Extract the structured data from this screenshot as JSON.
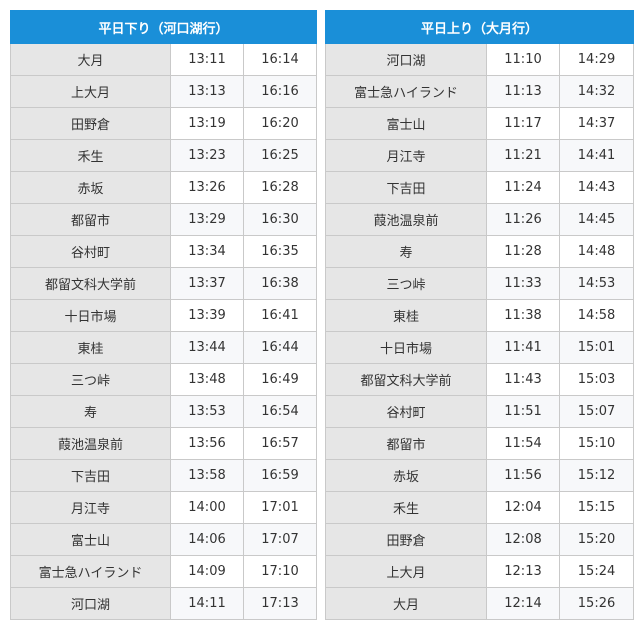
{
  "tables": [
    {
      "title": "平日下り（河口湖行）",
      "rows": [
        {
          "station": "大月",
          "times": [
            "13:11",
            "16:14"
          ]
        },
        {
          "station": "上大月",
          "times": [
            "13:13",
            "16:16"
          ]
        },
        {
          "station": "田野倉",
          "times": [
            "13:19",
            "16:20"
          ]
        },
        {
          "station": "禾生",
          "times": [
            "13:23",
            "16:25"
          ]
        },
        {
          "station": "赤坂",
          "times": [
            "13:26",
            "16:28"
          ]
        },
        {
          "station": "都留市",
          "times": [
            "13:29",
            "16:30"
          ]
        },
        {
          "station": "谷村町",
          "times": [
            "13:34",
            "16:35"
          ]
        },
        {
          "station": "都留文科大学前",
          "times": [
            "13:37",
            "16:38"
          ]
        },
        {
          "station": "十日市場",
          "times": [
            "13:39",
            "16:41"
          ]
        },
        {
          "station": "東桂",
          "times": [
            "13:44",
            "16:44"
          ]
        },
        {
          "station": "三つ峠",
          "times": [
            "13:48",
            "16:49"
          ]
        },
        {
          "station": "寿",
          "times": [
            "13:53",
            "16:54"
          ]
        },
        {
          "station": "葭池温泉前",
          "times": [
            "13:56",
            "16:57"
          ]
        },
        {
          "station": "下吉田",
          "times": [
            "13:58",
            "16:59"
          ]
        },
        {
          "station": "月江寺",
          "times": [
            "14:00",
            "17:01"
          ]
        },
        {
          "station": "富士山",
          "times": [
            "14:06",
            "17:07"
          ]
        },
        {
          "station": "富士急ハイランド",
          "times": [
            "14:09",
            "17:10"
          ]
        },
        {
          "station": "河口湖",
          "times": [
            "14:11",
            "17:13"
          ]
        }
      ]
    },
    {
      "title": "平日上り（大月行）",
      "rows": [
        {
          "station": "河口湖",
          "times": [
            "11:10",
            "14:29"
          ]
        },
        {
          "station": "富士急ハイランド",
          "times": [
            "11:13",
            "14:32"
          ]
        },
        {
          "station": "富士山",
          "times": [
            "11:17",
            "14:37"
          ]
        },
        {
          "station": "月江寺",
          "times": [
            "11:21",
            "14:41"
          ]
        },
        {
          "station": "下吉田",
          "times": [
            "11:24",
            "14:43"
          ]
        },
        {
          "station": "葭池温泉前",
          "times": [
            "11:26",
            "14:45"
          ]
        },
        {
          "station": "寿",
          "times": [
            "11:28",
            "14:48"
          ]
        },
        {
          "station": "三つ峠",
          "times": [
            "11:33",
            "14:53"
          ]
        },
        {
          "station": "東桂",
          "times": [
            "11:38",
            "14:58"
          ]
        },
        {
          "station": "十日市場",
          "times": [
            "11:41",
            "15:01"
          ]
        },
        {
          "station": "都留文科大学前",
          "times": [
            "11:43",
            "15:03"
          ]
        },
        {
          "station": "谷村町",
          "times": [
            "11:51",
            "15:07"
          ]
        },
        {
          "station": "都留市",
          "times": [
            "11:54",
            "15:10"
          ]
        },
        {
          "station": "赤坂",
          "times": [
            "11:56",
            "15:12"
          ]
        },
        {
          "station": "禾生",
          "times": [
            "12:04",
            "15:15"
          ]
        },
        {
          "station": "田野倉",
          "times": [
            "12:08",
            "15:20"
          ]
        },
        {
          "station": "上大月",
          "times": [
            "12:13",
            "15:24"
          ]
        },
        {
          "station": "大月",
          "times": [
            "12:14",
            "15:26"
          ]
        }
      ]
    }
  ],
  "colors": {
    "header_bg": "#1a8fd8",
    "header_text": "#ffffff",
    "station_bg": "#e6e6e6",
    "border": "#c9c9c9"
  }
}
